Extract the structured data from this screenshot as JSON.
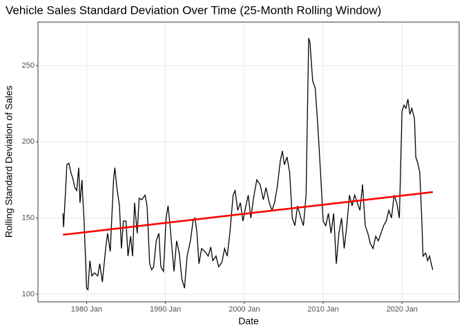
{
  "chart_data": {
    "type": "line",
    "title": "Vehicle Sales Standard Deviation Over Time (25-Month Rolling Window)",
    "x_label": "Date",
    "y_label": "Rolling Standard Deviation of Sales",
    "xlim": [
      "1973-11",
      "2027-04"
    ],
    "ylim": [
      95,
      278.5
    ],
    "xticks": [
      {
        "value": "1980-01",
        "label": "1980 Jan"
      },
      {
        "value": "1990-01",
        "label": "1990 Jan"
      },
      {
        "value": "2000-01",
        "label": "2000 Jan"
      },
      {
        "value": "2010-01",
        "label": "2010 Jan"
      },
      {
        "value": "2020-01",
        "label": "2020 Jan"
      }
    ],
    "yticks": [
      100,
      150,
      200,
      250
    ],
    "grid": true,
    "series": [
      {
        "color": "#000000",
        "x": [
          "1977-01",
          "1977-02",
          "1977-04",
          "1977-07",
          "1977-10",
          "1978-01",
          "1978-04",
          "1978-07",
          "1978-10",
          "1979-01",
          "1979-03",
          "1979-06",
          "1979-07",
          "1979-09",
          "1980-01",
          "1980-03",
          "1980-06",
          "1980-09",
          "1981-01",
          "1981-06",
          "1981-09",
          "1982-01",
          "1982-06",
          "1982-09",
          "1983-01",
          "1983-06",
          "1983-08",
          "1983-11",
          "1984-03",
          "1984-06",
          "1984-09",
          "1985-01",
          "1985-04",
          "1985-08",
          "1985-11",
          "1986-02",
          "1986-06",
          "1986-09",
          "1987-01",
          "1987-06",
          "1987-09",
          "1988-01",
          "1988-04",
          "1988-07",
          "1988-11",
          "1989-03",
          "1989-06",
          "1989-10",
          "1990-02",
          "1990-05",
          "1990-08",
          "1990-11",
          "1991-02",
          "1991-06",
          "1991-10",
          "1992-02",
          "1992-06",
          "1992-10",
          "1993-03",
          "1993-07",
          "1993-10",
          "1994-01",
          "1994-04",
          "1994-08",
          "1995-01",
          "1995-06",
          "1995-10",
          "1996-01",
          "1996-06",
          "1996-10",
          "1997-03",
          "1997-07",
          "1997-11",
          "1998-03",
          "1998-08",
          "1998-11",
          "1999-03",
          "1999-07",
          "1999-11",
          "2000-03",
          "2000-07",
          "2000-11",
          "2001-03",
          "2001-08",
          "2002-01",
          "2002-06",
          "2002-10",
          "2003-03",
          "2003-07",
          "2003-11",
          "2004-03",
          "2004-08",
          "2004-11",
          "2005-02",
          "2005-06",
          "2005-10",
          "2006-02",
          "2006-06",
          "2006-10",
          "2007-03",
          "2007-07",
          "2007-11",
          "2008-03",
          "2008-05",
          "2008-09",
          "2009-01",
          "2009-05",
          "2009-09",
          "2010-01",
          "2010-05",
          "2010-09",
          "2011-01",
          "2011-05",
          "2011-09",
          "2012-01",
          "2012-05",
          "2012-09",
          "2013-01",
          "2013-05",
          "2013-09",
          "2014-01",
          "2014-05",
          "2014-09",
          "2015-01",
          "2015-05",
          "2015-09",
          "2016-01",
          "2016-05",
          "2016-09",
          "2017-01",
          "2017-05",
          "2017-09",
          "2018-01",
          "2018-05",
          "2018-09",
          "2019-01",
          "2019-05",
          "2019-09",
          "2020-01",
          "2020-04",
          "2020-07",
          "2020-10",
          "2021-01",
          "2021-04",
          "2021-08",
          "2021-10",
          "2022-01",
          "2022-04",
          "2022-07",
          "2022-09",
          "2023-01",
          "2023-04",
          "2023-07",
          "2023-10",
          "2023-12"
        ],
        "values": [
          153,
          144,
          160,
          185,
          186,
          180,
          176,
          170,
          168,
          183,
          160,
          175,
          165,
          150,
          104,
          103,
          122,
          112,
          114,
          112,
          120,
          108,
          130,
          140,
          128,
          175,
          183,
          170,
          158,
          130,
          148,
          148,
          125,
          138,
          125,
          160,
          140,
          163,
          162,
          165,
          158,
          120,
          116,
          118,
          135,
          140,
          118,
          115,
          150,
          158,
          145,
          130,
          115,
          135,
          127,
          110,
          104,
          125,
          135,
          148,
          150,
          140,
          120,
          130,
          128,
          125,
          131,
          122,
          125,
          118,
          121,
          130,
          125,
          140,
          165,
          168,
          155,
          160,
          148,
          157,
          165,
          150,
          163,
          175,
          172,
          162,
          170,
          160,
          155,
          160,
          170,
          188,
          194,
          185,
          190,
          180,
          150,
          145,
          158,
          150,
          145,
          165,
          268,
          265,
          240,
          235,
          210,
          180,
          148,
          145,
          153,
          140,
          153,
          120,
          140,
          150,
          130,
          145,
          165,
          158,
          165,
          160,
          155,
          172,
          145,
          140,
          133,
          130,
          138,
          135,
          140,
          145,
          148,
          155,
          150,
          165,
          160,
          150,
          220,
          224,
          222,
          228,
          218,
          222,
          215,
          190,
          186,
          180,
          150,
          125,
          127,
          122,
          125,
          119,
          116
        ]
      },
      {
        "color": "#ff0000",
        "x": [
          "1977-01",
          "2023-12"
        ],
        "values": [
          139,
          167
        ]
      }
    ]
  }
}
